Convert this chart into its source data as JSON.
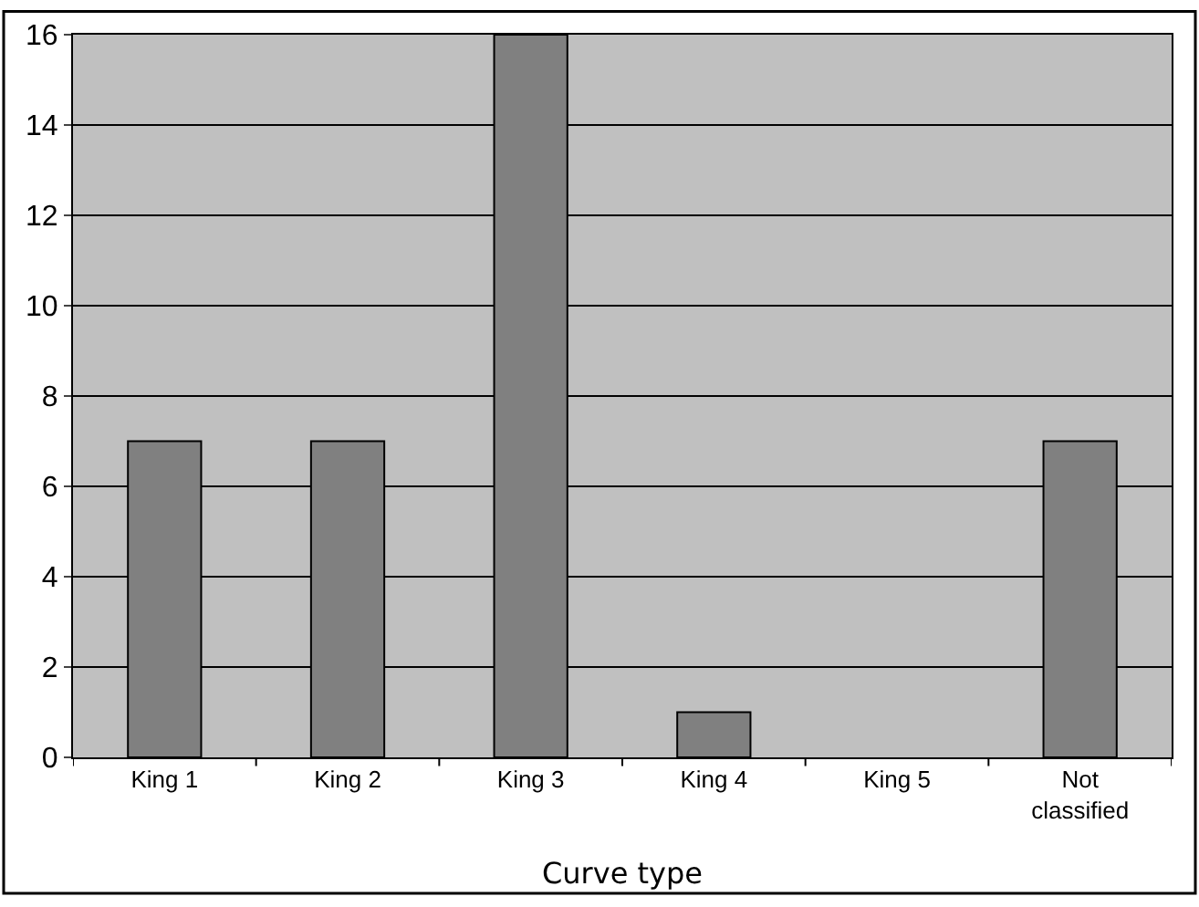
{
  "chart_data": {
    "type": "bar",
    "xlabel": "Curve type",
    "categories": [
      "King 1",
      "King 2",
      "King 3",
      "King 4",
      "King 5",
      "Not classified"
    ],
    "values": [
      7,
      7,
      16,
      1,
      0,
      7
    ],
    "color": "#808080",
    "ylim": [
      0,
      16
    ],
    "yticks": [
      0,
      2,
      4,
      6,
      8,
      10,
      12,
      14,
      16
    ],
    "grid": "y"
  }
}
